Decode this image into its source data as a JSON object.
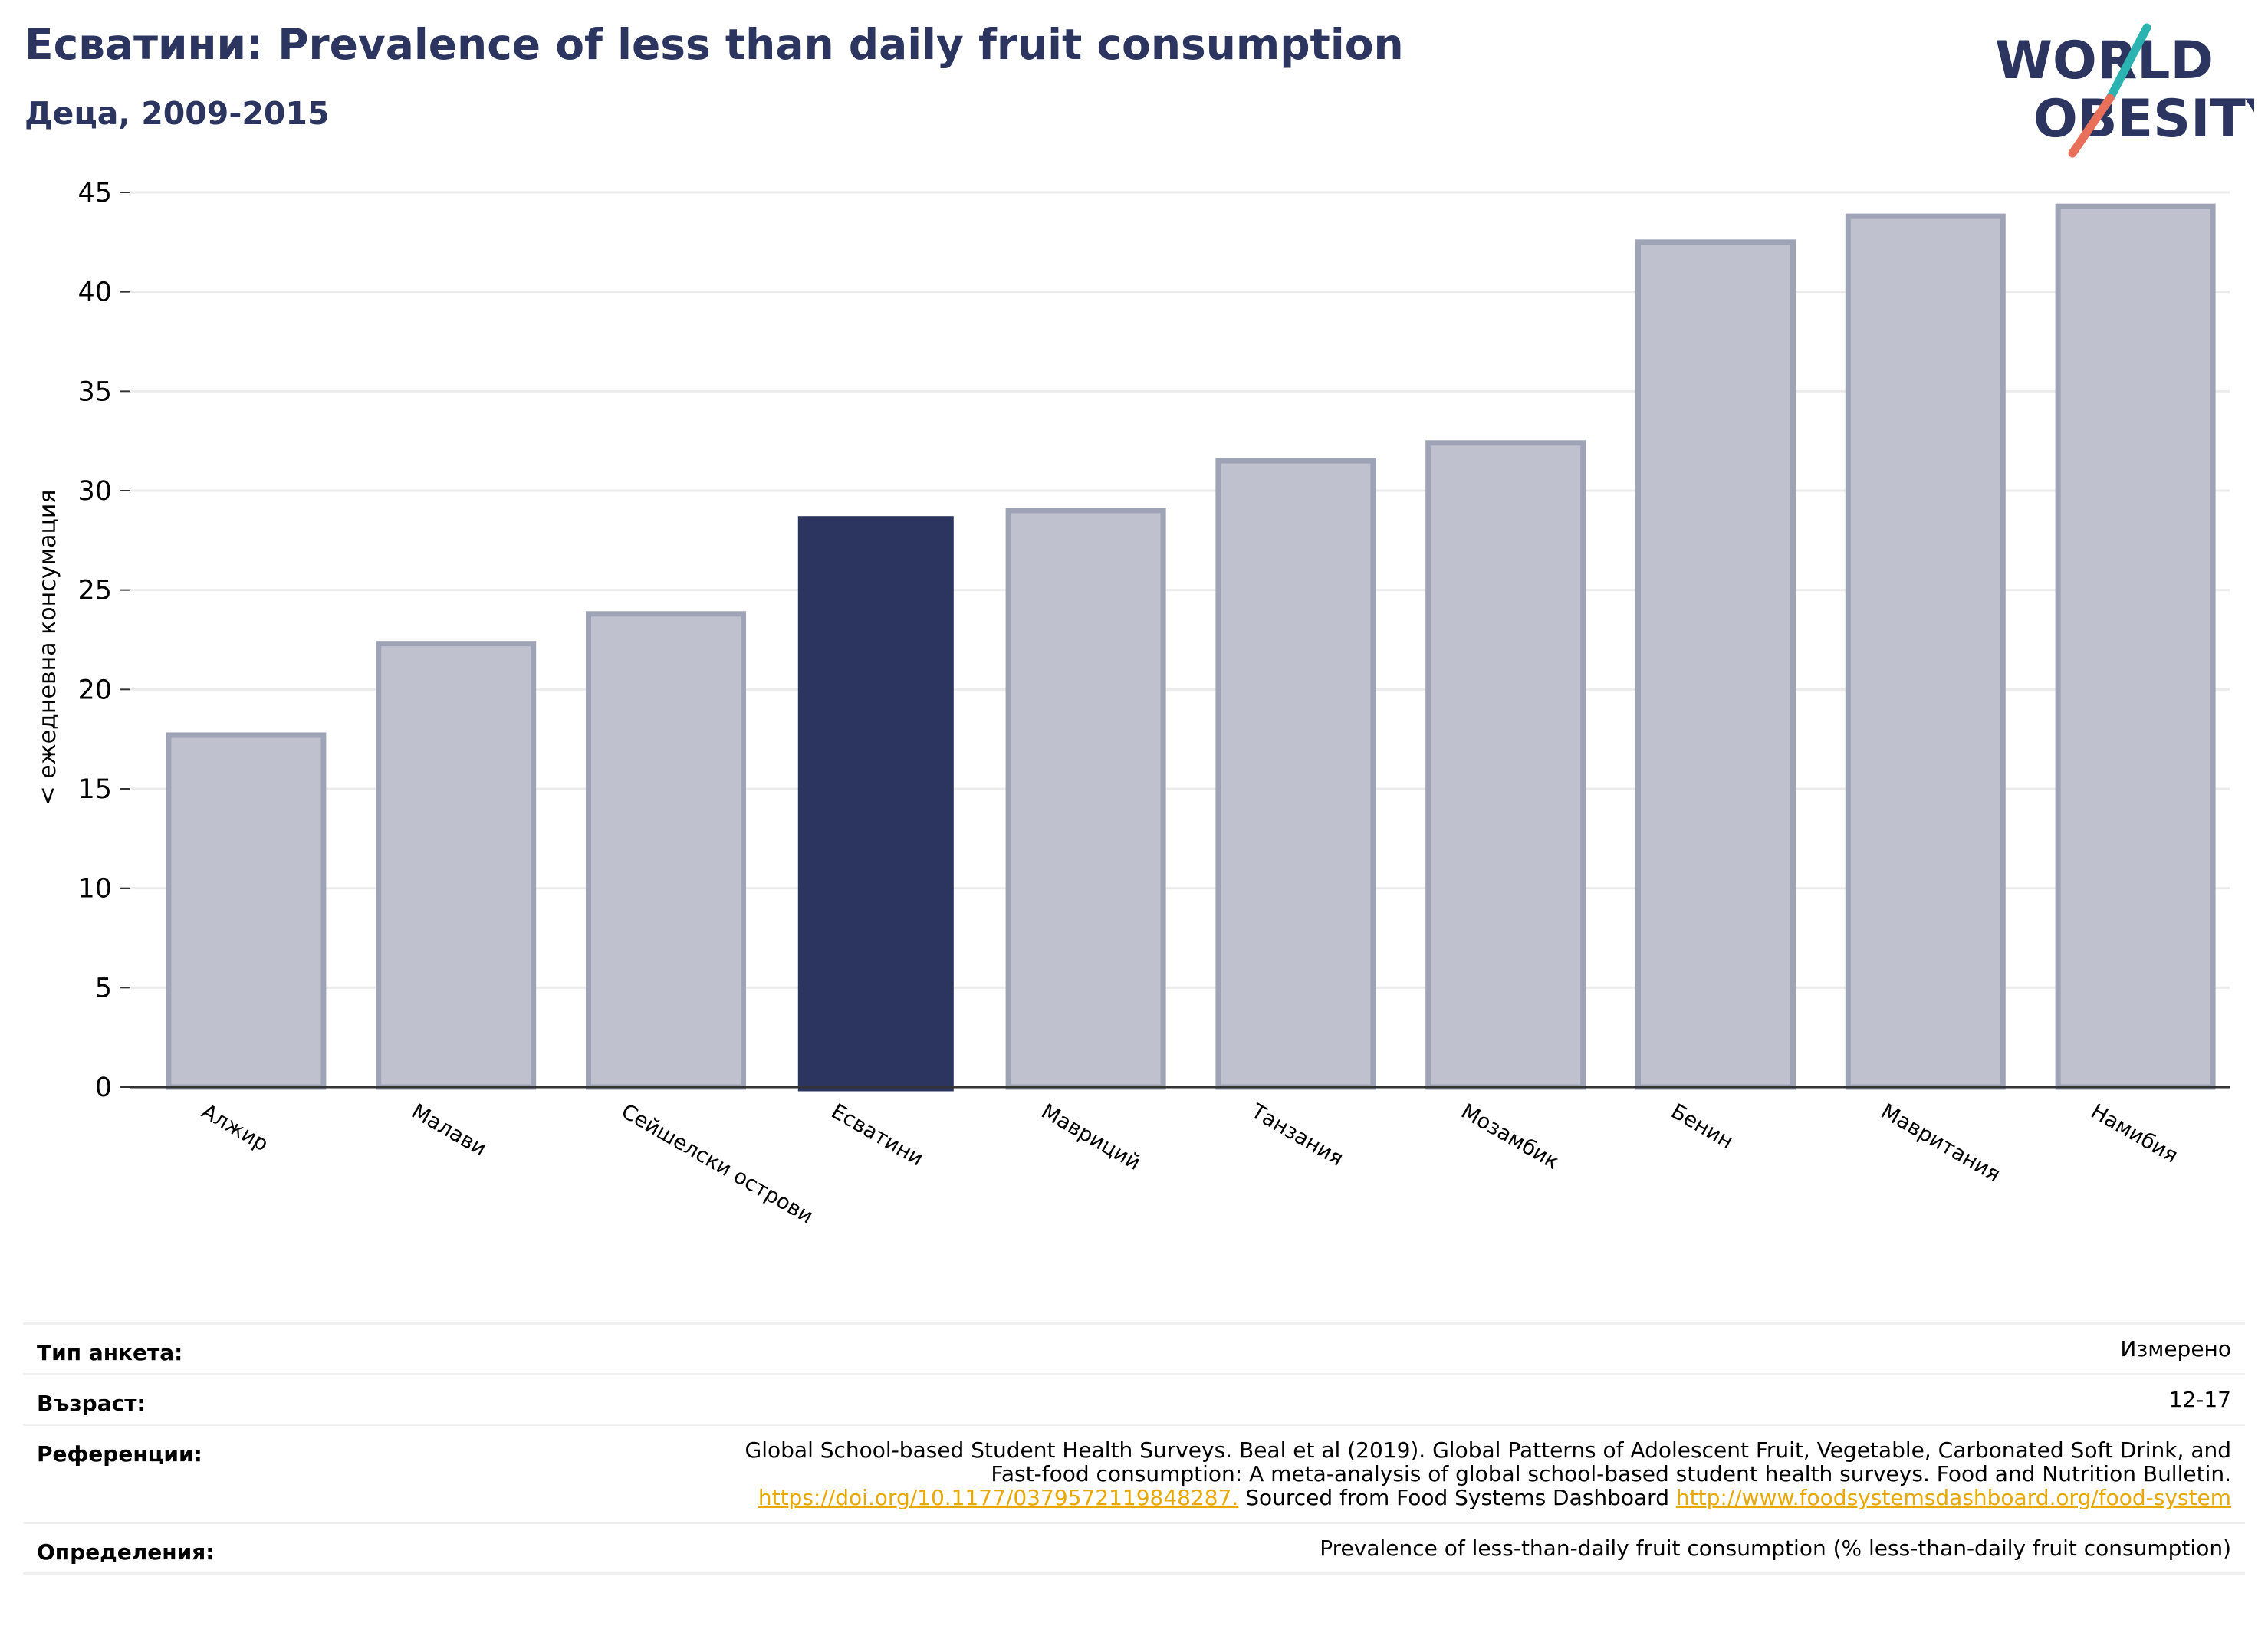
{
  "header": {
    "title": "Есватини: Prevalence of less than daily fruit consumption",
    "subtitle": "Деца, 2009-2015"
  },
  "logo": {
    "line1": "WORLD",
    "line2": "OBESITY",
    "text_color": "#2b3560",
    "slash_top_color": "#2ab3b0",
    "slash_bottom_color": "#e8705a"
  },
  "colors": {
    "highlight": "#2b3560",
    "bar_fill": "#bfc2ce",
    "bar_stroke": "#9ea3b6",
    "grid": "#ebebeb"
  },
  "chart_data": {
    "type": "bar",
    "categories": [
      "Алжир",
      "Малави",
      "Сейшелски острови",
      "Есватини",
      "Мавриций",
      "Танзания",
      "Мозамбик",
      "Бенин",
      "Мавритания",
      "Намибия"
    ],
    "values": [
      17.7,
      22.3,
      23.8,
      28.7,
      29.0,
      31.5,
      32.4,
      42.5,
      43.8,
      44.3
    ],
    "highlight_category": "Есватини",
    "ylabel": "< ежедневна консумация",
    "ylim": [
      0,
      45
    ],
    "yticks": [
      0,
      5,
      10,
      15,
      20,
      25,
      30,
      35,
      40,
      45
    ],
    "grid": true
  },
  "info": {
    "survey_type": {
      "label": "Тип анкета:",
      "value": "Измерено"
    },
    "age": {
      "label": "Възраст:",
      "value": "12-17"
    },
    "references": {
      "label": "Референции:",
      "text1": "Global School-based Student Health Surveys. Beal et al (2019). Global Patterns of Adolescent Fruit, Vegetable, Carbonated Soft Drink, and",
      "text2": "Fast-food consumption: A meta-analysis of global school-based student health surveys. Food and Nutrition Bulletin.",
      "link1": "https://doi.org/10.1177/0379572119848287.",
      "text3": " Sourced from Food Systems Dashboard ",
      "link2": "http://www.foodsystemsdashboard.org/food-system"
    },
    "definitions": {
      "label": "Определения:",
      "value": "Prevalence of less-than-daily fruit consumption (% less-than-daily fruit consumption)"
    }
  }
}
